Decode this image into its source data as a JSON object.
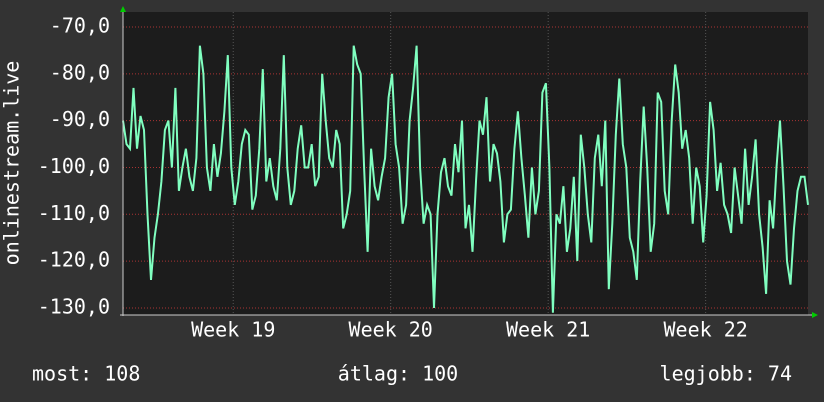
{
  "chart_data": {
    "type": "line",
    "ylabel": "onlinestream.live",
    "ylim": [
      -131.5,
      -66.8
    ],
    "yticks": [
      {
        "value": -130,
        "label": "-130,0"
      },
      {
        "value": -120,
        "label": "-120,0"
      },
      {
        "value": -110,
        "label": "-110,0"
      },
      {
        "value": -100,
        "label": "-100,0"
      },
      {
        "value": -90,
        "label": "-90,0"
      },
      {
        "value": -80,
        "label": "-80,0"
      },
      {
        "value": -70,
        "label": "-70,0"
      }
    ],
    "xlim": [
      18.3,
      22.65
    ],
    "xticks": [
      {
        "value": 19,
        "label": "Week 19"
      },
      {
        "value": 20,
        "label": "Week 20"
      },
      {
        "value": 21,
        "label": "Week 21"
      },
      {
        "value": 22,
        "label": "Week 22"
      }
    ],
    "grid": true,
    "series": [
      {
        "color": "#80ffc0",
        "values": [
          -90,
          -95,
          -96,
          -83,
          -96,
          -89,
          -92,
          -110,
          -124,
          -115,
          -110,
          -103,
          -92,
          -90,
          -100,
          -83,
          -105,
          -100,
          -96,
          -102,
          -105,
          -98,
          -74,
          -80,
          -100,
          -105,
          -95,
          -102,
          -97,
          -88,
          -76,
          -100,
          -108,
          -103,
          -95,
          -92,
          -93,
          -109,
          -106,
          -96,
          -79,
          -103,
          -98,
          -104,
          -107,
          -96,
          -76,
          -100,
          -108,
          -105,
          -96,
          -91,
          -100,
          -100,
          -95,
          -104,
          -102,
          -80,
          -90,
          -98,
          -100,
          -92,
          -95,
          -113,
          -110,
          -105,
          -74,
          -78,
          -80,
          -100,
          -118,
          -96,
          -104,
          -107,
          -102,
          -98,
          -85,
          -80,
          -95,
          -100,
          -112,
          -108,
          -90,
          -83,
          -74,
          -100,
          -112,
          -108,
          -110,
          -130,
          -110,
          -101,
          -98,
          -104,
          -106,
          -95,
          -101,
          -90,
          -113,
          -108,
          -118,
          -103,
          -90,
          -93,
          -85,
          -103,
          -95,
          -97,
          -103,
          -116,
          -110,
          -109,
          -96,
          -88,
          -98,
          -106,
          -115,
          -100,
          -110,
          -105,
          -84,
          -82,
          -100,
          -131,
          -110,
          -112,
          -104,
          -118,
          -113,
          -102,
          -120,
          -93,
          -100,
          -110,
          -116,
          -98,
          -93,
          -104,
          -90,
          -126,
          -112,
          -93,
          -81,
          -95,
          -100,
          -115,
          -118,
          -124,
          -103,
          -87,
          -100,
          -118,
          -112,
          -84,
          -86,
          -105,
          -110,
          -90,
          -78,
          -84,
          -96,
          -92,
          -98,
          -112,
          -100,
          -104,
          -116,
          -106,
          -86,
          -92,
          -105,
          -99,
          -108,
          -110,
          -114,
          -100,
          -106,
          -112,
          -96,
          -108,
          -102,
          -94,
          -110,
          -117,
          -127,
          -107,
          -113,
          -100,
          -90,
          -104,
          -120,
          -125,
          -113,
          -105,
          -102,
          -102,
          -108
        ]
      }
    ],
    "footer": {
      "current": "most: 108",
      "average": "átlag: 100",
      "best": "legjobb: 74"
    }
  }
}
